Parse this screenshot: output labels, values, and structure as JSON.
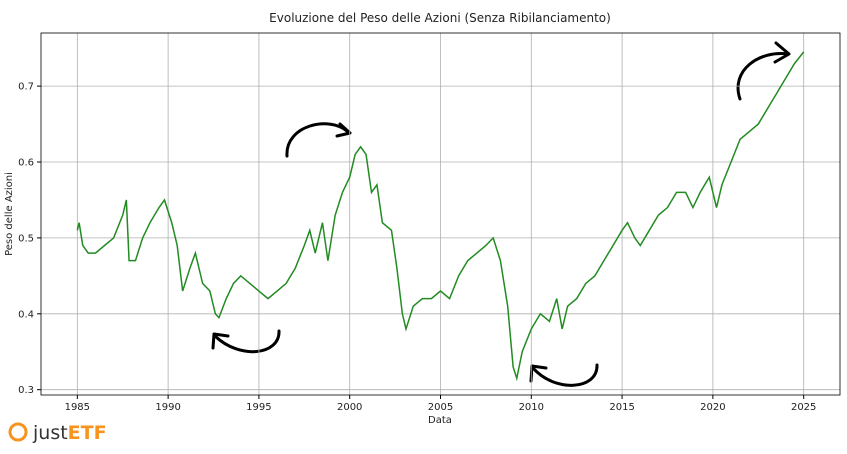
{
  "chart_data": {
    "type": "line",
    "title": "Evoluzione del Peso delle Azioni (Senza Ribilanciamento)",
    "x_label": "Data",
    "y_label": "Peso delle Azioni",
    "xlim": [
      1983,
      2027
    ],
    "ylim": [
      0.293,
      0.77
    ],
    "xticks": [
      1985,
      1990,
      1995,
      2000,
      2005,
      2010,
      2015,
      2020,
      2025
    ],
    "yticks": [
      0.3,
      0.4,
      0.5,
      0.6,
      0.7
    ],
    "grid": true,
    "series": [
      {
        "color": "#228b22",
        "x": [
          1985.0,
          1985.1,
          1985.3,
          1985.6,
          1986,
          1986.5,
          1987,
          1987.5,
          1987.7,
          1987.85,
          1988.2,
          1988.6,
          1989,
          1989.5,
          1989.8,
          1990.2,
          1990.5,
          1990.7,
          1990.8,
          1991.2,
          1991.5,
          1991.9,
          1992.3,
          1992.6,
          1992.8,
          1993.2,
          1993.6,
          1994,
          1994.5,
          1995,
          1995.5,
          1996,
          1996.5,
          1997,
          1997.5,
          1997.8,
          1998.1,
          1998.5,
          1998.8,
          1999.2,
          1999.6,
          2000,
          2000.3,
          2000.6,
          2000.9,
          2001.2,
          2001.5,
          2001.8,
          2002.3,
          2002.6,
          2002.9,
          2003.1,
          2003.5,
          2004,
          2004.5,
          2005,
          2005.5,
          2006,
          2006.5,
          2007,
          2007.5,
          2007.9,
          2008.3,
          2008.7,
          2009.0,
          2009.2,
          2009.5,
          2010,
          2010.5,
          2011,
          2011.4,
          2011.7,
          2012,
          2012.5,
          2013,
          2013.5,
          2014,
          2014.5,
          2015,
          2015.3,
          2015.7,
          2016,
          2016.5,
          2017,
          2017.5,
          2018,
          2018.5,
          2018.9,
          2019.3,
          2019.8,
          2020.2,
          2020.5,
          2021,
          2021.5,
          2022,
          2022.5,
          2023,
          2023.5,
          2024,
          2024.5,
          2025
        ],
        "values": [
          0.51,
          0.52,
          0.49,
          0.48,
          0.48,
          0.49,
          0.5,
          0.53,
          0.55,
          0.47,
          0.47,
          0.5,
          0.52,
          0.54,
          0.55,
          0.52,
          0.49,
          0.45,
          0.43,
          0.46,
          0.48,
          0.44,
          0.43,
          0.4,
          0.395,
          0.42,
          0.44,
          0.45,
          0.44,
          0.43,
          0.42,
          0.43,
          0.44,
          0.46,
          0.49,
          0.51,
          0.48,
          0.52,
          0.47,
          0.53,
          0.56,
          0.58,
          0.61,
          0.62,
          0.61,
          0.56,
          0.57,
          0.52,
          0.51,
          0.46,
          0.4,
          0.38,
          0.41,
          0.42,
          0.42,
          0.43,
          0.42,
          0.45,
          0.47,
          0.48,
          0.49,
          0.5,
          0.47,
          0.41,
          0.33,
          0.315,
          0.35,
          0.38,
          0.4,
          0.39,
          0.42,
          0.38,
          0.41,
          0.42,
          0.44,
          0.45,
          0.47,
          0.49,
          0.51,
          0.52,
          0.5,
          0.49,
          0.51,
          0.53,
          0.54,
          0.56,
          0.56,
          0.54,
          0.56,
          0.58,
          0.54,
          0.57,
          0.6,
          0.63,
          0.64,
          0.65,
          0.67,
          0.69,
          0.71,
          0.73,
          0.745
        ]
      }
    ]
  },
  "logo": {
    "prefix": "just",
    "suffix": "ETF"
  }
}
